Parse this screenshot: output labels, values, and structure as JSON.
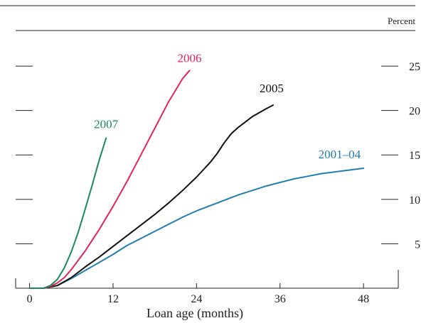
{
  "chart_data": {
    "type": "line",
    "title": "",
    "xlabel": "Loan age (months)",
    "ylabel": "",
    "unit_label": "Percent",
    "xlim": [
      -2,
      53
    ],
    "ylim": [
      0,
      29
    ],
    "xticks": [
      0,
      12,
      24,
      36,
      48
    ],
    "yticks": [
      5,
      10,
      15,
      20,
      25
    ],
    "grid": false,
    "series": [
      {
        "name": "2001–04",
        "color": "#1f7fae",
        "x": [
          0,
          2,
          4,
          6,
          8,
          10,
          12,
          14,
          16,
          18,
          20,
          22,
          24,
          26,
          28,
          30,
          32,
          34,
          36,
          38,
          40,
          42,
          44,
          46,
          48
        ],
        "y": [
          0,
          0,
          0.3,
          1.1,
          2.0,
          2.9,
          3.8,
          4.8,
          5.6,
          6.4,
          7.2,
          8.0,
          8.7,
          9.3,
          9.9,
          10.5,
          11.0,
          11.5,
          11.9,
          12.3,
          12.6,
          12.9,
          13.1,
          13.3,
          13.5
        ]
      },
      {
        "name": "2005",
        "color": "#111111",
        "x": [
          0,
          2,
          4,
          6,
          8,
          10,
          12,
          14,
          16,
          18,
          20,
          22,
          24,
          26,
          27,
          28,
          29,
          30,
          32,
          34,
          35
        ],
        "y": [
          0,
          0,
          0.3,
          1.2,
          2.4,
          3.5,
          4.7,
          5.9,
          7.1,
          8.3,
          9.6,
          11.0,
          12.5,
          14.2,
          15.2,
          16.4,
          17.4,
          18.1,
          19.3,
          20.2,
          20.6
        ]
      },
      {
        "name": "2006",
        "color": "#e0245e",
        "x": [
          0,
          2,
          3,
          4,
          5,
          6,
          8,
          10,
          12,
          14,
          16,
          18,
          20,
          22,
          23
        ],
        "y": [
          0,
          0,
          0.2,
          0.6,
          1.2,
          2.1,
          4.2,
          6.6,
          9.2,
          12.0,
          15.0,
          18.0,
          21.0,
          23.6,
          24.5
        ]
      },
      {
        "name": "2007",
        "color": "#1a8a5a",
        "x": [
          0,
          2,
          3,
          4,
          5,
          6,
          7,
          8,
          9,
          10,
          11
        ],
        "y": [
          0,
          0,
          0.3,
          1.0,
          2.3,
          4.1,
          6.3,
          8.9,
          11.6,
          14.4,
          16.9
        ]
      }
    ]
  }
}
